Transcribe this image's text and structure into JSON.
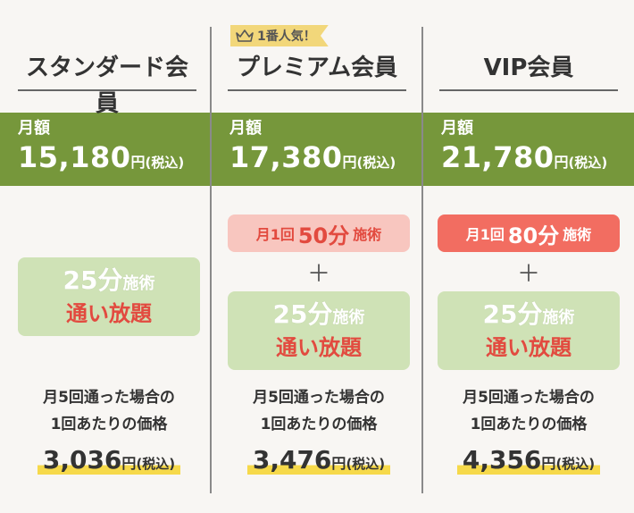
{
  "colors": {
    "band": "#76973b",
    "service_box": "#cfe2b6",
    "accent_red": "#e24a3f",
    "pill_light": "#f8c6bf",
    "pill_strong": "#f26d61",
    "badge": "#f2d77a",
    "highlight": "#f6d94a"
  },
  "badge": {
    "icon": "crown-icon",
    "text": "1番人気！"
  },
  "plans": [
    {
      "title": "スタンダード会員",
      "price_label": "月額",
      "price": "15,180",
      "price_unit": "円",
      "tax": "(税込)",
      "service_main": "25分",
      "service_small": "施術",
      "service_sub": "通い放題",
      "per_line1": "月5回通った場合の",
      "per_line2": "1回あたりの価格",
      "per_price": "3,036",
      "per_unit": "円",
      "per_tax": "(税込)"
    },
    {
      "title": "プレミアム会員",
      "price_label": "月額",
      "price": "17,380",
      "price_unit": "円",
      "tax": "(税込)",
      "extra_prefix": "月1回",
      "extra_main": "50分",
      "extra_suffix": "施術",
      "plus": "＋",
      "service_main": "25分",
      "service_small": "施術",
      "service_sub": "通い放題",
      "per_line1": "月5回通った場合の",
      "per_line2": "1回あたりの価格",
      "per_price": "3,476",
      "per_unit": "円",
      "per_tax": "(税込)"
    },
    {
      "title": "VIP会員",
      "price_label": "月額",
      "price": "21,780",
      "price_unit": "円",
      "tax": "(税込)",
      "extra_prefix": "月1回",
      "extra_main": "80分",
      "extra_suffix": "施術",
      "plus": "＋",
      "service_main": "25分",
      "service_small": "施術",
      "service_sub": "通い放題",
      "per_line1": "月5回通った場合の",
      "per_line2": "1回あたりの価格",
      "per_price": "4,356",
      "per_unit": "円",
      "per_tax": "(税込)"
    }
  ]
}
